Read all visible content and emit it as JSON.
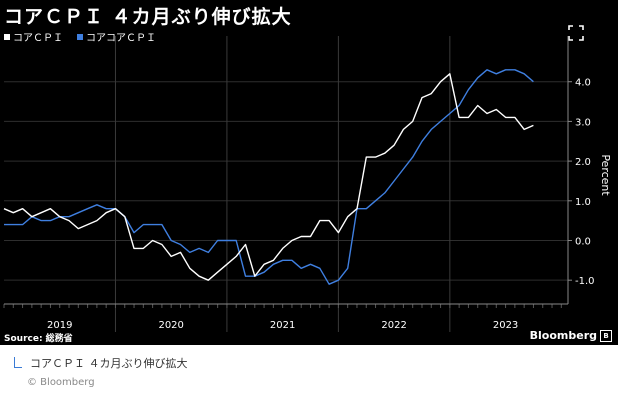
{
  "header": {
    "title": "コアＣＰＩ ４カ月ぶり伸び拡大"
  },
  "legend": [
    {
      "label": "コアＣＰＩ",
      "color": "#ffffff"
    },
    {
      "label": "コアコアＣＰＩ",
      "color": "#3f7fe0"
    }
  ],
  "footer": {
    "source": "Source: 総務省",
    "brand": "Bloomberg"
  },
  "caption": {
    "text": "コアＣＰＩ ４カ月ぶり伸び拡大",
    "credit": "© Bloomberg"
  },
  "chart_data": {
    "type": "line",
    "title": "コアＣＰＩ ４カ月ぶり伸び拡大",
    "ylabel": "Percent",
    "ylim": [
      -1.6,
      4.9
    ],
    "yticks": [
      -1.0,
      0.0,
      1.0,
      2.0,
      3.0,
      4.0
    ],
    "ytick_labels": [
      "-1.0",
      "0.0",
      "1.0",
      "2.0",
      "3.0",
      "4.0"
    ],
    "x_year_labels": [
      "2019",
      "2020",
      "2021",
      "2022",
      "2023"
    ],
    "x_start": "2019-01",
    "grid": true,
    "series": [
      {
        "name": "コアＣＰＩ",
        "color": "#ffffff",
        "values": [
          0.8,
          0.7,
          0.8,
          0.6,
          0.7,
          0.8,
          0.6,
          0.5,
          0.3,
          0.4,
          0.5,
          0.7,
          0.8,
          0.6,
          -0.2,
          -0.2,
          0.0,
          -0.1,
          -0.4,
          -0.3,
          -0.7,
          -0.9,
          -1.0,
          -0.8,
          -0.6,
          -0.4,
          -0.1,
          -0.9,
          -0.6,
          -0.5,
          -0.2,
          0.0,
          0.1,
          0.1,
          0.5,
          0.5,
          0.2,
          0.6,
          0.8,
          2.1,
          2.1,
          2.2,
          2.4,
          2.8,
          3.0,
          3.6,
          3.7,
          4.0,
          4.2,
          3.1,
          3.1,
          3.4,
          3.2,
          3.3,
          3.1,
          3.1,
          2.8,
          2.9
        ]
      },
      {
        "name": "コアコアＣＰＩ",
        "color": "#3f7fe0",
        "values": [
          0.4,
          0.4,
          0.4,
          0.6,
          0.5,
          0.5,
          0.6,
          0.6,
          0.7,
          0.8,
          0.9,
          0.8,
          0.8,
          0.6,
          0.2,
          0.4,
          0.4,
          0.4,
          0.0,
          -0.1,
          -0.3,
          -0.2,
          -0.3,
          0.0,
          0.0,
          0.0,
          -0.9,
          -0.9,
          -0.8,
          -0.6,
          -0.5,
          -0.5,
          -0.7,
          -0.6,
          -0.7,
          -1.1,
          -1.0,
          -0.7,
          0.8,
          0.8,
          1.0,
          1.2,
          1.5,
          1.8,
          2.1,
          2.5,
          2.8,
          3.0,
          3.2,
          3.4,
          3.8,
          4.1,
          4.3,
          4.2,
          4.3,
          4.3,
          4.2,
          4.0
        ]
      }
    ]
  }
}
